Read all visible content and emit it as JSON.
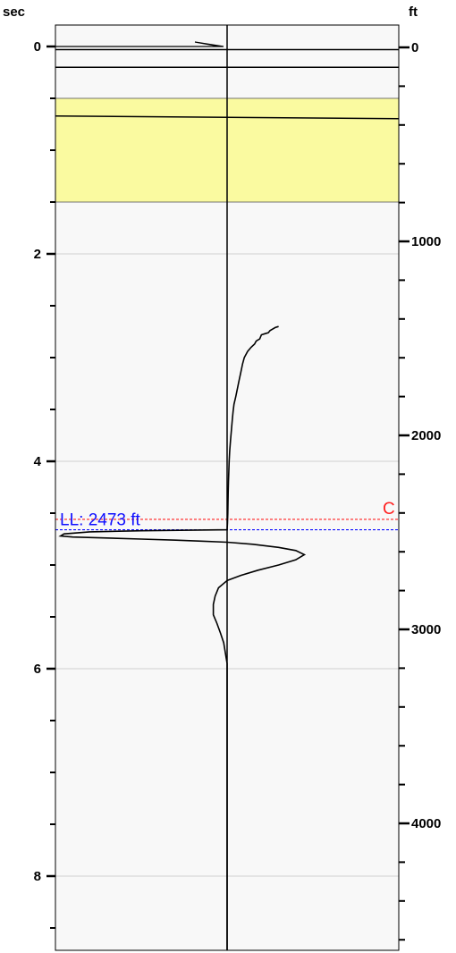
{
  "chart_data": {
    "type": "line",
    "left_axis": {
      "unit": "sec",
      "ticks": [
        0,
        2,
        4,
        6,
        8
      ],
      "range": [
        -0.3,
        8.72
      ]
    },
    "right_axis": {
      "unit": "ft",
      "ticks": [
        0,
        1000,
        2000,
        3000,
        4000
      ],
      "minor_step": 200,
      "range": [
        -200,
        4800
      ]
    },
    "grid": true,
    "plot_background": "#f8f8f8",
    "highlight_band": {
      "from_sec": 0.5,
      "to_sec": 1.5,
      "color": "#fafaa0"
    },
    "top_markers_sec": [
      0.03,
      0.2
    ],
    "band_line_sec": 0.67,
    "ll_marker": {
      "text": "LL: 2473 ft",
      "sec": 4.66,
      "color": "#1010ff"
    },
    "c_marker": {
      "text": "C",
      "sec": 4.56,
      "color": "#ff2020"
    },
    "series": [
      {
        "color": "#000000",
        "points": [
          [
            0.3,
            2.7
          ],
          [
            0.28,
            2.71
          ],
          [
            0.26,
            2.73
          ],
          [
            0.25,
            2.74
          ],
          [
            0.24,
            2.76
          ],
          [
            0.22,
            2.77
          ],
          [
            0.2,
            2.78
          ],
          [
            0.19,
            2.82
          ],
          [
            0.17,
            2.84
          ],
          [
            0.16,
            2.87
          ],
          [
            0.14,
            2.9
          ],
          [
            0.12,
            2.94
          ],
          [
            0.1,
            3.0
          ],
          [
            0.09,
            3.06
          ],
          [
            0.08,
            3.14
          ],
          [
            0.07,
            3.22
          ],
          [
            0.06,
            3.3
          ],
          [
            0.05,
            3.38
          ],
          [
            0.04,
            3.45
          ],
          [
            0.035,
            3.52
          ],
          [
            0.03,
            3.6
          ],
          [
            0.025,
            3.7
          ],
          [
            0.02,
            3.8
          ],
          [
            0.015,
            3.9
          ],
          [
            0.012,
            4.0
          ],
          [
            0.01,
            4.1
          ],
          [
            0.008,
            4.2
          ],
          [
            0.006,
            4.3
          ],
          [
            0.005,
            4.4
          ],
          [
            0.004,
            4.5
          ],
          [
            0.002,
            4.6
          ],
          [
            0.0,
            4.66
          ],
          [
            -0.5,
            4.67
          ],
          [
            -0.8,
            4.68
          ],
          [
            -0.95,
            4.7
          ],
          [
            -0.97,
            4.72
          ],
          [
            -0.9,
            4.73
          ],
          [
            -0.7,
            4.74
          ],
          [
            -0.5,
            4.75
          ],
          [
            -0.3,
            4.76
          ],
          [
            -0.15,
            4.77
          ],
          [
            0.0,
            4.78
          ],
          [
            0.15,
            4.8
          ],
          [
            0.3,
            4.83
          ],
          [
            0.4,
            4.86
          ],
          [
            0.45,
            4.9
          ],
          [
            0.4,
            4.95
          ],
          [
            0.3,
            5.0
          ],
          [
            0.18,
            5.05
          ],
          [
            0.08,
            5.1
          ],
          [
            0.0,
            5.15
          ],
          [
            -0.05,
            5.22
          ],
          [
            -0.07,
            5.3
          ],
          [
            -0.08,
            5.38
          ],
          [
            -0.08,
            5.48
          ],
          [
            -0.06,
            5.56
          ],
          [
            -0.04,
            5.65
          ],
          [
            -0.02,
            5.75
          ],
          [
            -0.01,
            5.85
          ],
          [
            0.0,
            5.95
          ],
          [
            0.0,
            6.1
          ],
          [
            0.0,
            6.5
          ],
          [
            0.0,
            7.0
          ],
          [
            0.0,
            7.5
          ],
          [
            0.0,
            8.0
          ],
          [
            0.0,
            8.72
          ]
        ]
      }
    ]
  }
}
